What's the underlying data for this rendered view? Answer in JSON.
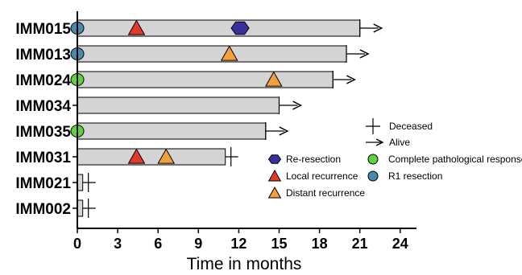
{
  "chart_data": {
    "type": "swimmer",
    "xlabel": "Time in months",
    "xlim": [
      0,
      25.5
    ],
    "xticks": [
      0,
      3,
      6,
      9,
      12,
      15,
      18,
      21,
      24
    ],
    "patients": [
      {
        "id": "IMM015",
        "months": 21,
        "status": "Alive",
        "start_marker": "R1 resection",
        "events": [
          {
            "type": "Local recurrence",
            "month": 4.4
          },
          {
            "type": "Re-resection",
            "month": 12.1
          }
        ]
      },
      {
        "id": "IMM013",
        "months": 20,
        "status": "Alive",
        "start_marker": "R1 resection",
        "events": [
          {
            "type": "Distant recurrence",
            "month": 11.3
          }
        ]
      },
      {
        "id": "IMM024",
        "months": 19,
        "status": "Alive",
        "start_marker": "Complete pathological response",
        "events": [
          {
            "type": "Distant recurrence",
            "month": 14.6
          }
        ]
      },
      {
        "id": "IMM034",
        "months": 15,
        "status": "Alive",
        "start_marker": null,
        "events": []
      },
      {
        "id": "IMM035",
        "months": 14,
        "status": "Alive",
        "start_marker": "Complete pathological response",
        "events": []
      },
      {
        "id": "IMM031",
        "months": 11,
        "status": "Deceased",
        "start_marker": null,
        "events": [
          {
            "type": "Local recurrence",
            "month": 4.4
          },
          {
            "type": "Distant recurrence",
            "month": 6.6
          }
        ]
      },
      {
        "id": "IMM021",
        "months": 0.4,
        "status": "Deceased",
        "start_marker": null,
        "events": []
      },
      {
        "id": "IMM002",
        "months": 0.4,
        "status": "Deceased",
        "start_marker": null,
        "events": []
      }
    ],
    "legend": [
      {
        "label": "Deceased",
        "symbol": "cross"
      },
      {
        "label": "Alive",
        "symbol": "arrow"
      },
      {
        "label": "Re-resection",
        "symbol": "hexagon",
        "color": "#3b2f9e"
      },
      {
        "label": "Complete pathological response",
        "symbol": "circle",
        "color": "#5fd13c"
      },
      {
        "label": "Local recurrence",
        "symbol": "triangle",
        "color": "#e03b2b"
      },
      {
        "label": "R1 resection",
        "symbol": "circle",
        "color": "#4a88a8"
      },
      {
        "label": "Distant recurrence",
        "symbol": "triangle",
        "color": "#f0a03c"
      }
    ],
    "colors": {
      "bar_fill": "#d4d4d4",
      "re_resection": "#3b2f9e",
      "local_recurrence": "#e03b2b",
      "distant_recurrence": "#f0a03c",
      "cpr": "#5fd13c",
      "r1": "#4a88a8"
    }
  }
}
